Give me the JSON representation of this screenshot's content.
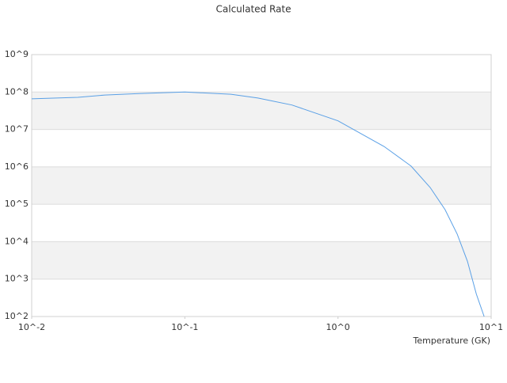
{
  "chart_data": {
    "type": "line",
    "title": "Calculated Rate",
    "xlabel": "Temperature (GK)",
    "log_x": true,
    "log_y": true,
    "grid": true,
    "xlim": [
      0.01,
      10
    ],
    "ylim": [
      100,
      1000000000
    ],
    "xticks": [
      {
        "value": 0.01,
        "label": "10^-2"
      },
      {
        "value": 0.1,
        "label": "10^-1"
      },
      {
        "value": 1,
        "label": "10^0"
      },
      {
        "value": 10,
        "label": "10^1"
      }
    ],
    "yticks": [
      {
        "value": 100,
        "label": "10^2"
      },
      {
        "value": 1000,
        "label": "10^3"
      },
      {
        "value": 10000,
        "label": "10^4"
      },
      {
        "value": 100000,
        "label": "10^5"
      },
      {
        "value": 1000000,
        "label": "10^6"
      },
      {
        "value": 10000000,
        "label": "10^7"
      },
      {
        "value": 100000000,
        "label": "10^8"
      },
      {
        "value": 1000000000,
        "label": "10^9"
      }
    ],
    "x": [
      0.01,
      0.02,
      0.03,
      0.05,
      0.1,
      0.2,
      0.3,
      0.5,
      1,
      2,
      3,
      4,
      5,
      6,
      7,
      8,
      9
    ],
    "series": [
      {
        "color": "#5aa0e6",
        "values": [
          66000000,
          72000000,
          83000000,
          91000000,
          100000000,
          87000000,
          69000000,
          45000000,
          17000000,
          3500000,
          1050000,
          280000,
          72000,
          16000,
          3000,
          400,
          100
        ]
      }
    ]
  }
}
